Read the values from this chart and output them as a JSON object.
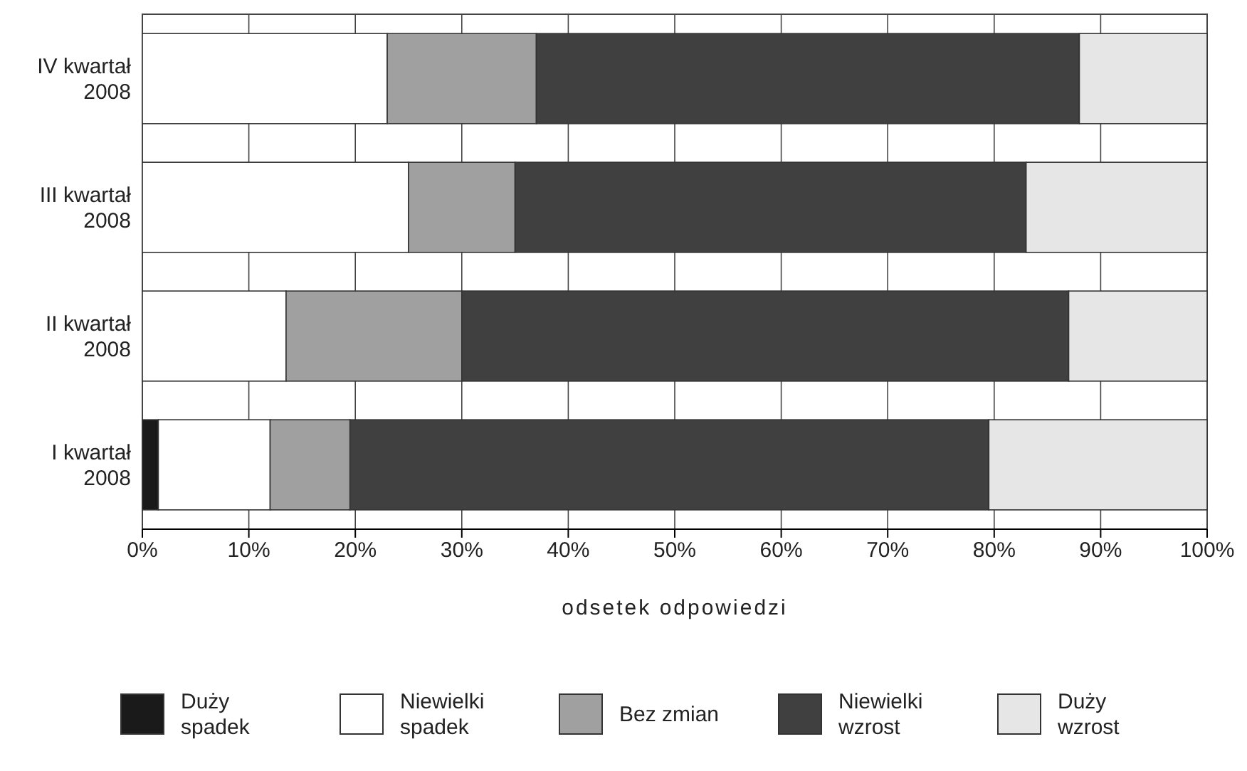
{
  "chart_data": {
    "type": "bar",
    "orientation": "horizontal",
    "stacked": true,
    "categories": [
      "IV kwartał 2008",
      "III kwartał 2008",
      "II kwartał 2008",
      "I kwartał 2008"
    ],
    "series": [
      {
        "name": "Duży spadek",
        "color": "#1a1a1a",
        "values": [
          0,
          0,
          0,
          1.5
        ]
      },
      {
        "name": "Niewielki spadek",
        "color": "#ffffff",
        "values": [
          23,
          25,
          13.5,
          10.5
        ]
      },
      {
        "name": "Bez zmian",
        "color": "#a0a0a0",
        "values": [
          14,
          10,
          16.5,
          7.5
        ]
      },
      {
        "name": "Niewielki wzrost",
        "color": "#404040",
        "values": [
          51,
          48,
          57,
          60
        ]
      },
      {
        "name": "Duży wzrost",
        "color": "#e6e6e6",
        "values": [
          12,
          17,
          13,
          20.5
        ]
      }
    ],
    "xlim": [
      0,
      100
    ],
    "xticks": [
      {
        "value": 0,
        "label": "0%"
      },
      {
        "value": 10,
        "label": "10%"
      },
      {
        "value": 20,
        "label": "20%"
      },
      {
        "value": 30,
        "label": "30%"
      },
      {
        "value": 40,
        "label": "40%"
      },
      {
        "value": 50,
        "label": "50%"
      },
      {
        "value": 60,
        "label": "60%"
      },
      {
        "value": 70,
        "label": "70%"
      },
      {
        "value": 80,
        "label": "80%"
      },
      {
        "value": 90,
        "label": "90%"
      },
      {
        "value": 100,
        "label": "100%"
      }
    ],
    "xlabel": "odsetek odpowiedzi",
    "grid": "x",
    "legend": "bottom"
  }
}
